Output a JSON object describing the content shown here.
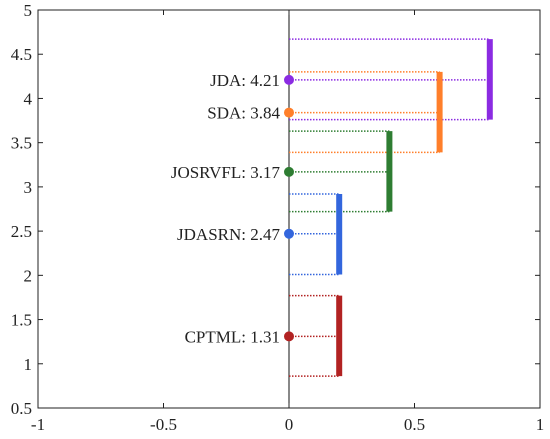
{
  "chart_data": {
    "type": "scatter",
    "title": "",
    "xlabel": "",
    "ylabel": "",
    "xlim": [
      -1,
      1
    ],
    "ylim": [
      0.5,
      5
    ],
    "xticks": [
      "-1",
      "-0.5",
      "0",
      "0.5",
      "1"
    ],
    "yticks": [
      "0.5",
      "1",
      "1.5",
      "2",
      "2.5",
      "3",
      "3.5",
      "4",
      "4.5",
      "5"
    ],
    "zero_line": 0,
    "grid": false,
    "methods": [
      {
        "label": "JDA: 4.21",
        "name": "JDA",
        "value": 4.21,
        "cd_low": 3.76,
        "cd_high": 4.67,
        "bar_x": 0.8,
        "color": "#8B2BE2"
      },
      {
        "label": "SDA: 3.84",
        "name": "SDA",
        "value": 3.84,
        "cd_low": 3.39,
        "cd_high": 4.3,
        "bar_x": 0.6,
        "color": "#FF7F2A"
      },
      {
        "label": "JOSRVFL: 3.17",
        "name": "JOSRVFL",
        "value": 3.17,
        "cd_low": 2.72,
        "cd_high": 3.63,
        "bar_x": 0.4,
        "color": "#2E7D32"
      },
      {
        "label": "JDASRN: 2.47",
        "name": "JDASRN",
        "value": 2.47,
        "cd_low": 2.01,
        "cd_high": 2.92,
        "bar_x": 0.2,
        "color": "#3366DD"
      },
      {
        "label": "CPTML: 1.31",
        "name": "CPTML",
        "value": 1.31,
        "cd_low": 0.86,
        "cd_high": 1.77,
        "bar_x": 0.2,
        "color": "#B22222"
      }
    ]
  }
}
